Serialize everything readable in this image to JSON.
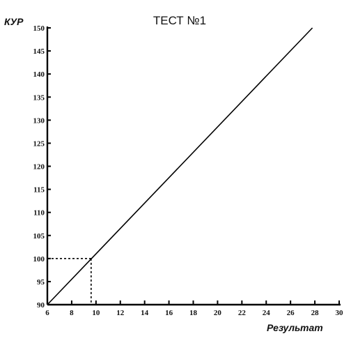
{
  "chart_data": {
    "type": "line",
    "title": "ТЕСТ №1",
    "xlabel": "Результат",
    "ylabel": "КУР",
    "xlim": [
      6,
      30
    ],
    "ylim": [
      90,
      150
    ],
    "xticks": [
      6,
      8,
      10,
      12,
      14,
      16,
      18,
      20,
      22,
      24,
      26,
      28,
      30
    ],
    "yticks": [
      90,
      95,
      100,
      105,
      110,
      115,
      120,
      125,
      130,
      135,
      140,
      145,
      150
    ],
    "series": [
      {
        "x": [
          6,
          27.8
        ],
        "y": [
          90,
          150
        ]
      }
    ],
    "reference": {
      "x": 9.6,
      "y": 100
    },
    "grid": false
  }
}
